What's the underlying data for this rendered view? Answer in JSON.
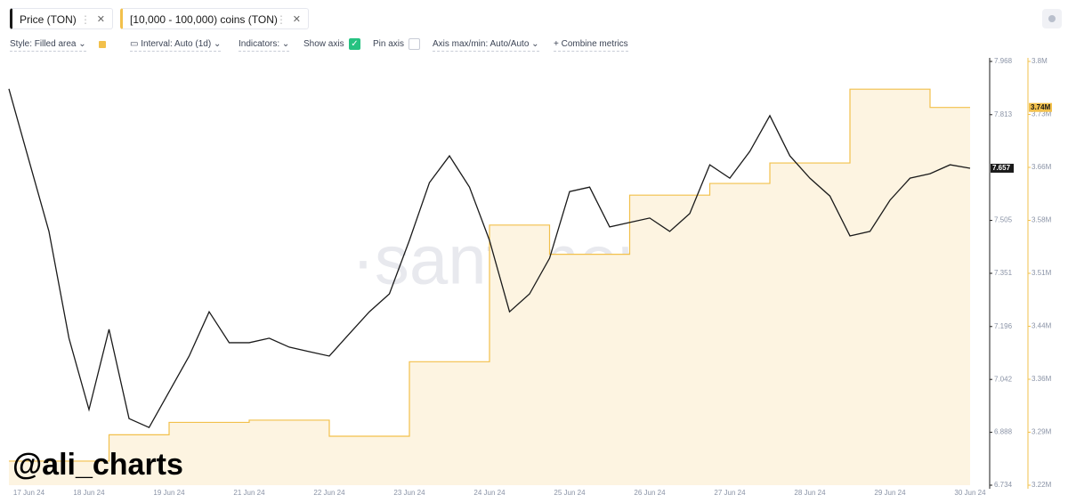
{
  "ui": {
    "controls": [
      "Style: Filled area",
      "Interval: Auto (1d)",
      "Indicators:",
      "Show axis",
      "Pin axis",
      "Axis max/min: Auto/Auto",
      "Combine metrics"
    ],
    "watermark": "·santiment·",
    "credit": "@ali_charts"
  },
  "chart_data": {
    "type": "line",
    "categories": [
      null,
      "17 Jun 24",
      null,
      null,
      "18 Jun 24",
      null,
      null,
      null,
      "19 Jun 24",
      null,
      null,
      null,
      "21 Jun 24",
      null,
      null,
      null,
      "22 Jun 24",
      null,
      null,
      null,
      "23 Jun 24",
      null,
      null,
      null,
      "24 Jun 24",
      null,
      null,
      null,
      "25 Jun 24",
      null,
      null,
      null,
      "26 Jun 24",
      null,
      null,
      null,
      "27 Jun 24",
      null,
      null,
      null,
      "28 Jun 24",
      null,
      null,
      null,
      "29 Jun 24",
      null,
      null,
      null,
      "30 Jun 24"
    ],
    "ylim": [
      6.734,
      7.968
    ],
    "yticks": [
      6.734,
      6.888,
      7.042,
      7.196,
      7.351,
      7.505,
      7.813,
      7.968
    ],
    "y2lim": [
      3220000,
      3800000
    ],
    "y2ticks": [
      {
        "value": 3220000,
        "label": "3.22M"
      },
      {
        "value": 3292500,
        "label": "3.29M"
      },
      {
        "value": 3365000,
        "label": "3.36M"
      },
      {
        "value": 3437500,
        "label": "3.44M"
      },
      {
        "value": 3510000,
        "label": "3.51M"
      },
      {
        "value": 3582500,
        "label": "3.58M"
      },
      {
        "value": 3655000,
        "label": "3.66M"
      },
      {
        "value": 3727500,
        "label": "3.73M"
      },
      {
        "value": 3800000,
        "label": "3.8M"
      }
    ],
    "series": [
      {
        "name": "Price (TON)",
        "color": "#1a1a1a",
        "values": [
          7.888,
          7.68,
          7.473,
          7.162,
          6.954,
          7.188,
          6.928,
          6.902,
          7.006,
          7.11,
          7.239,
          7.149,
          7.149,
          7.162,
          7.136,
          7.123,
          7.11,
          7.175,
          7.239,
          7.291,
          7.447,
          7.615,
          7.693,
          7.602,
          7.447,
          7.239,
          7.291,
          7.395,
          7.589,
          7.602,
          7.486,
          7.499,
          7.512,
          7.473,
          7.525,
          7.667,
          7.628,
          7.706,
          7.81,
          7.693,
          7.628,
          7.576,
          7.46,
          7.473,
          7.564,
          7.628,
          7.641,
          7.667,
          7.657
        ]
      },
      {
        "name": "[10,000 - 100,000) coins (TON)",
        "color": "#f2c04b",
        "fill": "#fdf4e1",
        "axis": "y2",
        "step": true,
        "values": [
          3253000,
          3253000,
          3253000,
          3253000,
          3253000,
          3289000,
          3289000,
          3289000,
          3306000,
          3306000,
          3306000,
          3306000,
          3309000,
          3309000,
          3309000,
          3309000,
          3287000,
          3287000,
          3287000,
          3287000,
          3389000,
          3389000,
          3389000,
          3389000,
          3576000,
          3576000,
          3576000,
          3536000,
          3536000,
          3536000,
          3536000,
          3617000,
          3617000,
          3617000,
          3617000,
          3633000,
          3633000,
          3633000,
          3661000,
          3661000,
          3661000,
          3661000,
          3762000,
          3762000,
          3762000,
          3762000,
          3737000,
          3737000,
          3737000
        ],
        "value_labels": [
          null,
          null,
          null,
          null,
          null,
          null,
          null,
          null,
          null,
          null,
          null,
          null,
          null,
          null,
          null,
          null,
          null,
          null,
          null,
          null,
          null,
          null,
          null,
          null,
          null,
          null,
          null,
          null,
          null,
          null,
          null,
          null,
          null,
          null,
          null,
          null,
          null,
          null,
          null,
          null,
          null,
          null,
          null,
          null,
          null,
          null,
          null,
          null,
          "3.74M"
        ]
      }
    ]
  }
}
